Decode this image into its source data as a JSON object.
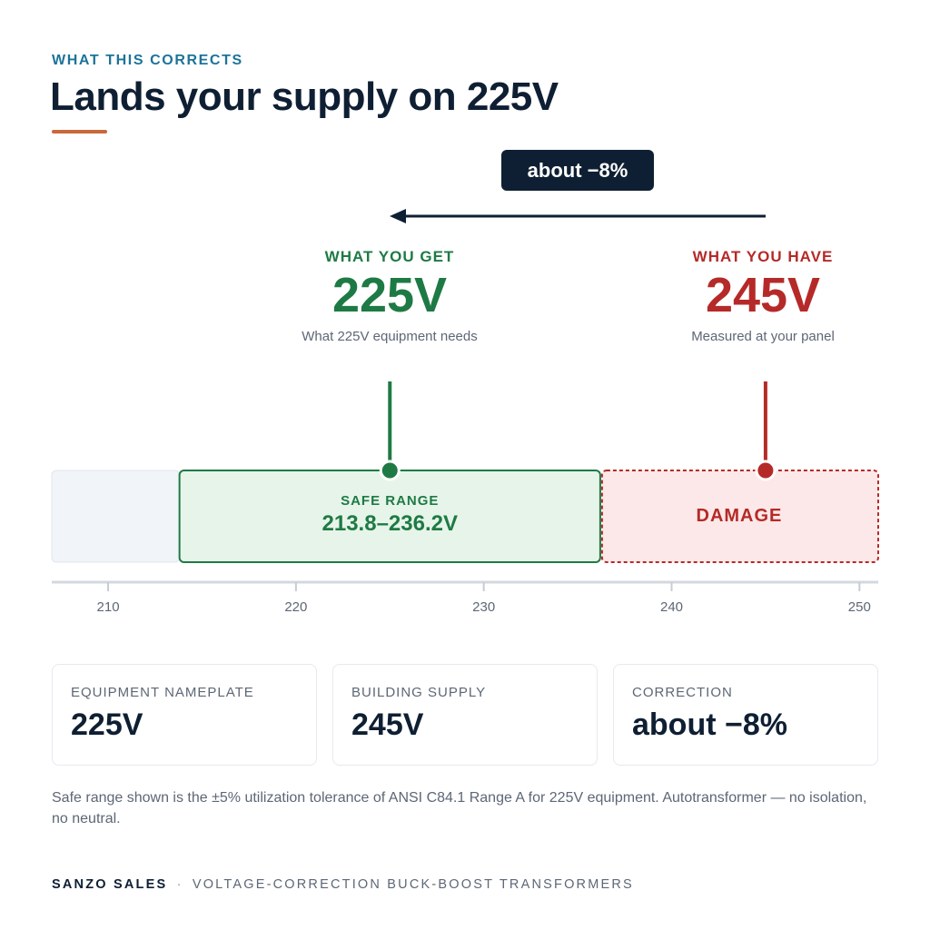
{
  "header": {
    "eyebrow": "WHAT THIS CORRECTS",
    "title": "Lands your supply on 225V"
  },
  "correction_pill": "about −8%",
  "callouts": {
    "get": {
      "label": "WHAT YOU GET",
      "value": "225V",
      "sub": "What 225V equipment needs",
      "voltage": 225
    },
    "have": {
      "label": "WHAT YOU HAVE",
      "value": "245V",
      "sub": "Measured at your panel",
      "voltage": 245
    }
  },
  "scale": {
    "min": 207,
    "max": 251,
    "ticks": [
      "210",
      "220",
      "230",
      "240",
      "250"
    ],
    "safe": {
      "label": "SAFE RANGE",
      "range_text": "213.8–236.2V",
      "from": 213.8,
      "to": 236.2
    },
    "damage": {
      "label": "DAMAGE",
      "from": 236.2,
      "to": 251
    }
  },
  "cards": [
    {
      "label": "EQUIPMENT NAMEPLATE",
      "value": "225V"
    },
    {
      "label": "BUILDING SUPPLY",
      "value": "245V"
    },
    {
      "label": "CORRECTION",
      "value": "about −8%"
    }
  ],
  "footnote": "Safe range shown is the ±5% utilization tolerance of ANSI C84.1 Range A for 225V equipment. Autotransformer — no isolation, no neutral.",
  "footer": {
    "brand": "SANZO SALES",
    "separator": "·",
    "tagline": "VOLTAGE-CORRECTION BUCK-BOOST TRANSFORMERS"
  },
  "colors": {
    "navy": "#0f1f33",
    "accent_blue": "#1c7399",
    "accent_orange": "#c8693a",
    "safe_green": "#1e7a44",
    "safe_fill": "#e6f4ea",
    "damage_red": "#b52a28",
    "damage_fill": "#fce8e8",
    "neutral_fill": "#f1f4f8",
    "axis": "#d3d8df"
  }
}
